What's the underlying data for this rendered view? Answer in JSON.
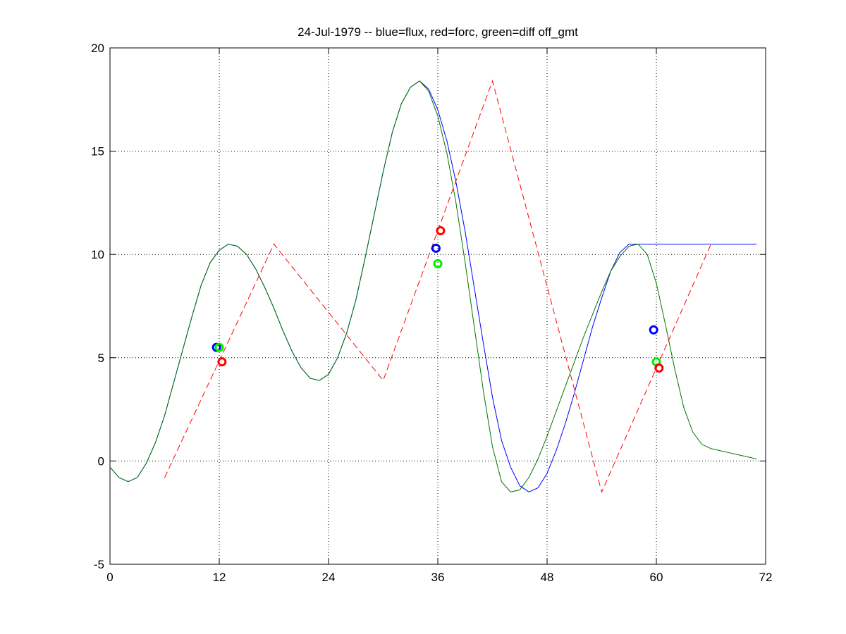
{
  "chart_data": {
    "type": "line",
    "title": "24-Jul-1979 -- blue=flux, red=forc, green=diff off_gmt",
    "xlabel": "",
    "ylabel": "",
    "xlim": [
      0,
      72
    ],
    "ylim": [
      -5,
      20
    ],
    "xticks": [
      0,
      12,
      24,
      36,
      48,
      60,
      72
    ],
    "yticks": [
      -5,
      0,
      5,
      10,
      15,
      20
    ],
    "grid": true,
    "series": [
      {
        "color": "#0000ff",
        "style": "solid",
        "x": [
          0,
          1,
          2,
          3,
          4,
          5,
          6,
          7,
          8,
          9,
          10,
          11,
          12,
          13,
          14,
          15,
          16,
          17,
          18,
          19,
          20,
          21,
          22,
          23,
          24,
          25,
          26,
          27,
          28,
          29,
          30,
          31,
          32,
          33,
          34,
          35,
          36,
          37,
          38,
          39,
          40,
          41,
          42,
          43,
          44,
          45,
          46,
          47,
          48,
          49,
          50,
          51,
          52,
          53,
          54,
          55,
          56,
          57,
          58,
          59,
          60,
          61,
          62,
          63,
          64,
          65,
          66,
          67,
          68,
          69,
          70,
          71
        ],
        "y": [
          -0.3,
          -0.8,
          -1.0,
          -0.8,
          -0.1,
          0.9,
          2.2,
          3.8,
          5.4,
          7.0,
          8.5,
          9.6,
          10.2,
          10.5,
          10.4,
          10.0,
          9.3,
          8.4,
          7.4,
          6.3,
          5.3,
          4.5,
          4.0,
          3.9,
          4.2,
          5.0,
          6.2,
          7.8,
          9.8,
          11.9,
          14.0,
          15.9,
          17.3,
          18.1,
          18.4,
          18.0,
          17.0,
          15.5,
          13.5,
          11.1,
          8.4,
          5.7,
          3.1,
          1.0,
          -0.3,
          -1.2,
          -1.5,
          -1.3,
          -0.6,
          0.5,
          1.8,
          3.3,
          4.9,
          6.5,
          7.9,
          9.2,
          10.1,
          10.5,
          10.5,
          10.5,
          10.5,
          10.5,
          10.5,
          10.5,
          10.5,
          10.5,
          10.5,
          10.5,
          10.5,
          10.5,
          10.5,
          10.5
        ]
      },
      {
        "color": "#007700",
        "style": "solid",
        "x": [
          0,
          1,
          2,
          3,
          4,
          5,
          6,
          7,
          8,
          9,
          10,
          11,
          12,
          13,
          14,
          15,
          16,
          17,
          18,
          19,
          20,
          21,
          22,
          23,
          24,
          25,
          26,
          27,
          28,
          29,
          30,
          31,
          32,
          33,
          34,
          35,
          36,
          37,
          38,
          39,
          40,
          41,
          42,
          43,
          44,
          45,
          46,
          47,
          48,
          49,
          50,
          51,
          52,
          53,
          54,
          55,
          56,
          57,
          58,
          59,
          60,
          61,
          62,
          63,
          64,
          65,
          66,
          67,
          68,
          69,
          70,
          71
        ],
        "y": [
          -0.3,
          -0.8,
          -1.0,
          -0.8,
          -0.1,
          0.9,
          2.2,
          3.8,
          5.4,
          7.0,
          8.5,
          9.6,
          10.2,
          10.5,
          10.4,
          10.0,
          9.3,
          8.4,
          7.4,
          6.3,
          5.3,
          4.5,
          4.0,
          3.9,
          4.2,
          5.0,
          6.2,
          7.8,
          9.8,
          11.9,
          14.0,
          15.9,
          17.3,
          18.1,
          18.4,
          17.9,
          16.7,
          14.9,
          12.5,
          9.6,
          6.5,
          3.4,
          0.7,
          -1.0,
          -1.5,
          -1.4,
          -0.8,
          0.1,
          1.2,
          2.4,
          3.6,
          4.8,
          6.0,
          7.1,
          8.2,
          9.2,
          9.9,
          10.4,
          10.5,
          10.0,
          8.6,
          6.6,
          4.5,
          2.6,
          1.4,
          0.8,
          0.6,
          0.5,
          0.4,
          0.3,
          0.2,
          0.1
        ]
      },
      {
        "color": "#ff0000",
        "style": "dashed",
        "x": [
          6,
          18,
          30,
          42,
          54,
          66
        ],
        "y": [
          -0.8,
          10.5,
          3.9,
          18.4,
          -1.5,
          10.5
        ]
      }
    ],
    "markers": [
      {
        "color": "#0000ff",
        "x": 11.7,
        "y": 5.5
      },
      {
        "color": "#00ee00",
        "x": 12.0,
        "y": 5.5
      },
      {
        "color": "#ff0000",
        "x": 12.3,
        "y": 4.8
      },
      {
        "color": "#0000ff",
        "x": 35.8,
        "y": 10.3
      },
      {
        "color": "#00ee00",
        "x": 36.0,
        "y": 9.55
      },
      {
        "color": "#ff0000",
        "x": 36.3,
        "y": 11.15
      },
      {
        "color": "#0000ff",
        "x": 59.7,
        "y": 6.35
      },
      {
        "color": "#00ee00",
        "x": 60.0,
        "y": 4.8
      },
      {
        "color": "#ff0000",
        "x": 60.3,
        "y": 4.5
      }
    ]
  }
}
